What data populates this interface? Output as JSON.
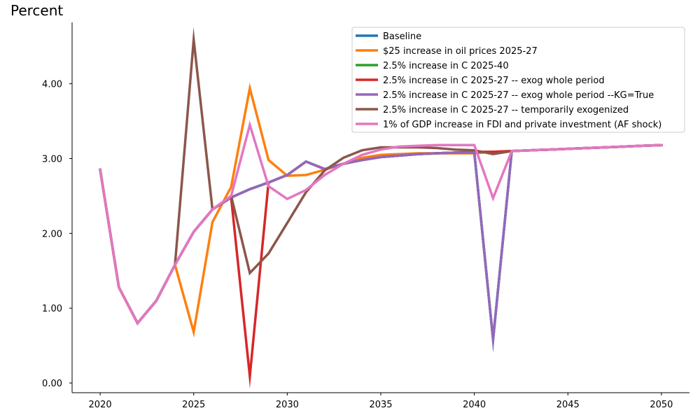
{
  "chart_data": {
    "type": "line",
    "title": "Percent",
    "xlabel": "",
    "ylabel": "",
    "xlim": [
      2018.5,
      2051.5
    ],
    "ylim": [
      -0.13,
      4.82
    ],
    "xticks": [
      2020,
      2025,
      2030,
      2035,
      2040,
      2045,
      2050
    ],
    "xtick_labels": [
      "2020",
      "2025",
      "2030",
      "2035",
      "2040",
      "2045",
      "2050"
    ],
    "yticks": [
      0,
      1,
      2,
      3,
      4
    ],
    "ytick_labels": [
      "0.00",
      "1.00",
      "2.00",
      "3.00",
      "4.00"
    ],
    "grid": false,
    "legend_position": "top-right",
    "x": [
      2020,
      2021,
      2022,
      2023,
      2024,
      2025,
      2026,
      2027,
      2028,
      2029,
      2030,
      2031,
      2032,
      2033,
      2034,
      2035,
      2036,
      2037,
      2038,
      2039,
      2040,
      2041,
      2042,
      2043,
      2044,
      2045,
      2046,
      2047,
      2048,
      2049,
      2050
    ],
    "series": [
      {
        "name": "Baseline",
        "color": "#1f77b4",
        "values": [
          2.85,
          1.28,
          0.8,
          1.1,
          1.58,
          2.02,
          2.32,
          2.48,
          2.59,
          2.68,
          2.78,
          2.96,
          2.86,
          2.93,
          2.98,
          3.02,
          3.04,
          3.06,
          3.07,
          3.08,
          3.08,
          0.58,
          3.1,
          3.11,
          3.12,
          3.13,
          3.14,
          3.15,
          3.16,
          3.17,
          3.18
        ]
      },
      {
        "name": "$25 increase in oil prices 2025-27",
        "color": "#ff7f0e",
        "values": [
          2.85,
          1.28,
          0.8,
          1.1,
          1.58,
          0.68,
          2.15,
          2.62,
          3.94,
          2.98,
          2.77,
          2.78,
          2.85,
          2.93,
          3.01,
          3.05,
          3.06,
          3.07,
          3.07,
          3.07,
          3.07,
          3.09,
          3.1,
          3.11,
          3.12,
          3.13,
          3.14,
          3.15,
          3.16,
          3.17,
          3.18
        ]
      },
      {
        "name": "2.5% increase in C 2025-40",
        "color": "#2ca02c",
        "values": [
          2.85,
          1.28,
          0.8,
          1.1,
          1.58,
          2.02,
          2.32,
          2.48,
          2.59,
          2.68,
          2.78,
          2.96,
          2.86,
          2.93,
          2.98,
          3.02,
          3.04,
          3.06,
          3.07,
          3.08,
          3.08,
          0.58,
          3.1,
          3.11,
          3.12,
          3.13,
          3.14,
          3.15,
          3.16,
          3.17,
          3.18
        ]
      },
      {
        "name": "2.5% increase in C 2025-27 -- exog whole period",
        "color": "#d62728",
        "values": [
          2.85,
          1.28,
          0.8,
          1.1,
          1.58,
          2.02,
          2.32,
          2.48,
          0.09,
          2.68,
          2.78,
          2.96,
          2.86,
          2.93,
          2.98,
          3.02,
          3.04,
          3.06,
          3.07,
          3.08,
          3.09,
          3.09,
          3.1,
          3.11,
          3.12,
          3.13,
          3.14,
          3.15,
          3.16,
          3.17,
          3.18
        ]
      },
      {
        "name": "2.5% increase in C 2025-27 -- exog whole period --KG=True",
        "color": "#9467bd",
        "values": [
          2.85,
          1.28,
          0.8,
          1.1,
          1.58,
          2.02,
          2.32,
          2.48,
          2.59,
          2.68,
          2.78,
          2.96,
          2.86,
          2.93,
          2.98,
          3.02,
          3.04,
          3.06,
          3.07,
          3.08,
          3.08,
          0.58,
          3.1,
          3.11,
          3.12,
          3.13,
          3.14,
          3.15,
          3.16,
          3.17,
          3.18
        ]
      },
      {
        "name": "2.5% increase in C 2025-27 -- temporarily exogenized",
        "color": "#8c564b",
        "values": [
          2.85,
          1.28,
          0.8,
          1.1,
          1.58,
          4.59,
          2.32,
          2.5,
          1.47,
          1.73,
          2.14,
          2.55,
          2.84,
          3.01,
          3.11,
          3.15,
          3.15,
          3.15,
          3.14,
          3.12,
          3.11,
          3.06,
          3.1,
          3.11,
          3.12,
          3.13,
          3.14,
          3.15,
          3.16,
          3.17,
          3.18
        ]
      },
      {
        "name": "1% of GDP increase in FDI and private investment (AF shock)",
        "color": "#e377c2",
        "values": [
          2.85,
          1.28,
          0.8,
          1.1,
          1.58,
          2.02,
          2.32,
          2.5,
          3.45,
          2.63,
          2.46,
          2.58,
          2.78,
          2.93,
          3.05,
          3.12,
          3.16,
          3.17,
          3.18,
          3.18,
          3.18,
          2.47,
          3.1,
          3.11,
          3.12,
          3.13,
          3.14,
          3.15,
          3.16,
          3.17,
          3.18
        ]
      }
    ]
  }
}
